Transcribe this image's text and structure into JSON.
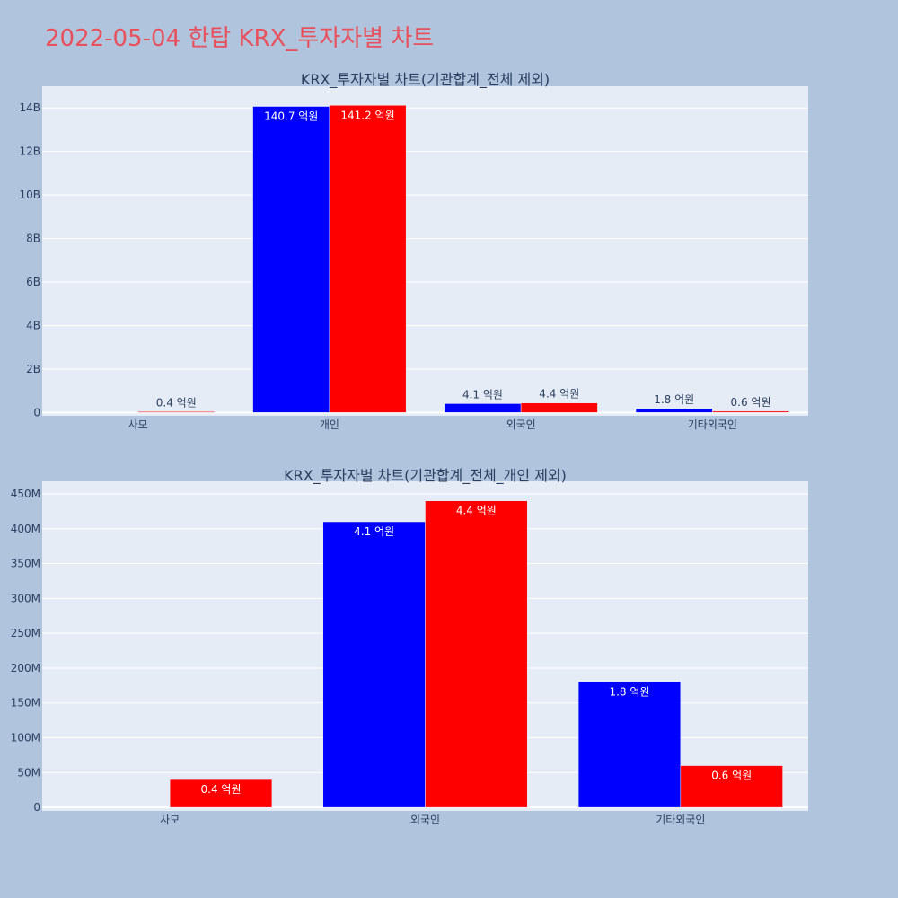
{
  "page_title": "2022-05-04 한탑 KRX_투자자별 차트",
  "colors": {
    "background": "#b0c4de",
    "plot_bg": "#e5ecf6",
    "series_a": "#0000ff",
    "series_b": "#ff0000",
    "title": "#e8505b"
  },
  "chart_data": [
    {
      "type": "bar",
      "title": "KRX_투자자별 차트(기관합계_전체 제외)",
      "categories": [
        "사모",
        "개인",
        "외국인",
        "기타외국인"
      ],
      "series": [
        {
          "color": "#0000ff",
          "values": [
            0,
            14070000000,
            410000000,
            180000000
          ],
          "labels": [
            "",
            "140.7 억원",
            "4.1 억원",
            "1.8 억원"
          ]
        },
        {
          "color": "#ff0000",
          "values": [
            40000000,
            14120000000,
            440000000,
            60000000
          ],
          "labels": [
            "0.4 억원",
            "141.2 억원",
            "4.4 억원",
            "0.6 억원"
          ]
        }
      ],
      "ylim": [
        -150000000,
        15000000000
      ],
      "yticks": [
        0,
        2000000000,
        4000000000,
        6000000000,
        8000000000,
        10000000000,
        12000000000,
        14000000000
      ],
      "ytick_labels": [
        "0",
        "2B",
        "4B",
        "6B",
        "8B",
        "10B",
        "12B",
        "14B"
      ],
      "grid": true
    },
    {
      "type": "bar",
      "title": "KRX_투자자별 차트(기관합계_전체_개인 제외)",
      "categories": [
        "사모",
        "외국인",
        "기타외국인"
      ],
      "series": [
        {
          "color": "#0000ff",
          "values": [
            0,
            410000000,
            180000000
          ],
          "labels": [
            "",
            "4.1 억원",
            "1.8 억원"
          ]
        },
        {
          "color": "#ff0000",
          "values": [
            40000000,
            440000000,
            60000000
          ],
          "labels": [
            "0.4 억원",
            "4.4 억원",
            "0.6 억원"
          ]
        }
      ],
      "ylim": [
        -5000000,
        468000000
      ],
      "yticks": [
        0,
        50000000,
        100000000,
        150000000,
        200000000,
        250000000,
        300000000,
        350000000,
        400000000,
        450000000
      ],
      "ytick_labels": [
        "0",
        "50M",
        "100M",
        "150M",
        "200M",
        "250M",
        "300M",
        "350M",
        "400M",
        "450M"
      ],
      "grid": true
    }
  ]
}
